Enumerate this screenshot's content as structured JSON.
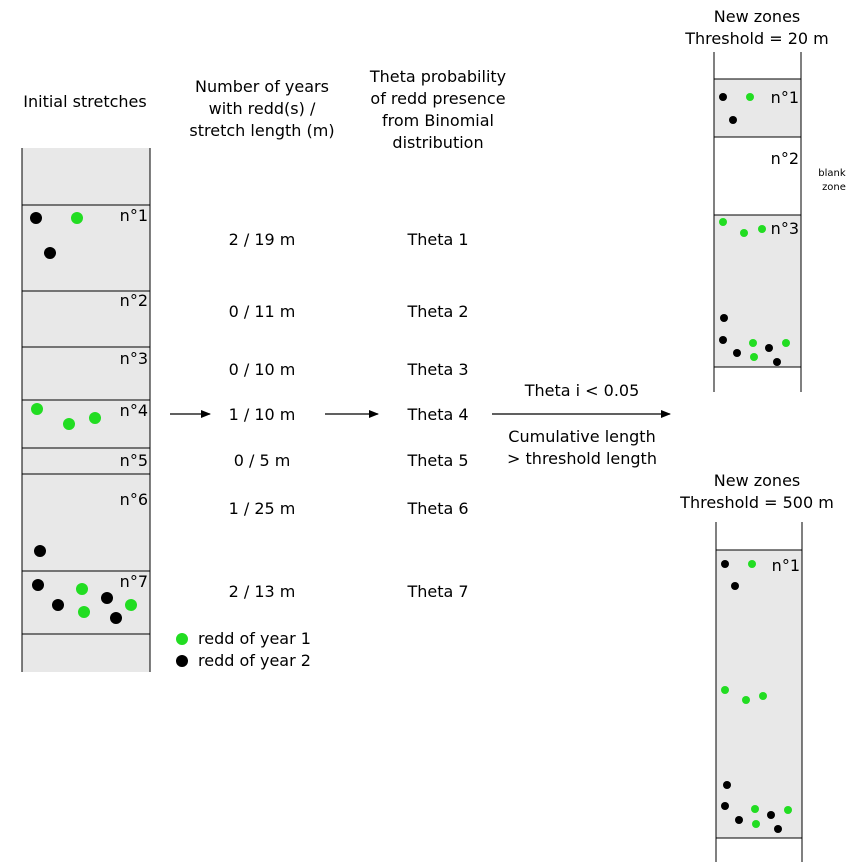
{
  "headers": {
    "initial": "Initial stretches",
    "years_line1": "Number of years",
    "years_line2": "with redd(s) /",
    "years_line3": "stretch length (m)",
    "theta_line1": "Theta probability",
    "theta_line2": "of redd presence",
    "theta_line3": "from Binomial",
    "theta_line4": "distribution"
  },
  "stretches": [
    {
      "label": "n°1",
      "ratio": "2 / 19 m",
      "theta": "Theta 1"
    },
    {
      "label": "n°2",
      "ratio": "0 / 11 m",
      "theta": "Theta 2"
    },
    {
      "label": "n°3",
      "ratio": "0 / 10 m",
      "theta": "Theta 3"
    },
    {
      "label": "n°4",
      "ratio": "1 / 10 m",
      "theta": "Theta 4"
    },
    {
      "label": "n°5",
      "ratio": "0 / 5 m",
      "theta": "Theta 5"
    },
    {
      "label": "n°6",
      "ratio": "1 / 25 m",
      "theta": "Theta 6"
    },
    {
      "label": "n°7",
      "ratio": "2 / 13 m",
      "theta": "Theta 7"
    }
  ],
  "legend": {
    "year1": "redd of year 1",
    "year2": "redd of year 2"
  },
  "colors": {
    "year1": "#22dd22",
    "year2": "#000000",
    "zone_fill": "#e8e8e8"
  },
  "rule": {
    "condition": "Theta i < 0.05",
    "cumulative_line1": "Cumulative length",
    "cumulative_line2": "> threshold length"
  },
  "zones20": {
    "title_line1": "New zones",
    "title_line2": "Threshold = 20 m",
    "labels": [
      "n°1",
      "n°2",
      "n°3"
    ],
    "blank_line1": "blank",
    "blank_line2": "zone"
  },
  "zones500": {
    "title_line1": "New zones",
    "title_line2": "Threshold = 500 m",
    "labels": [
      "n°1"
    ]
  }
}
